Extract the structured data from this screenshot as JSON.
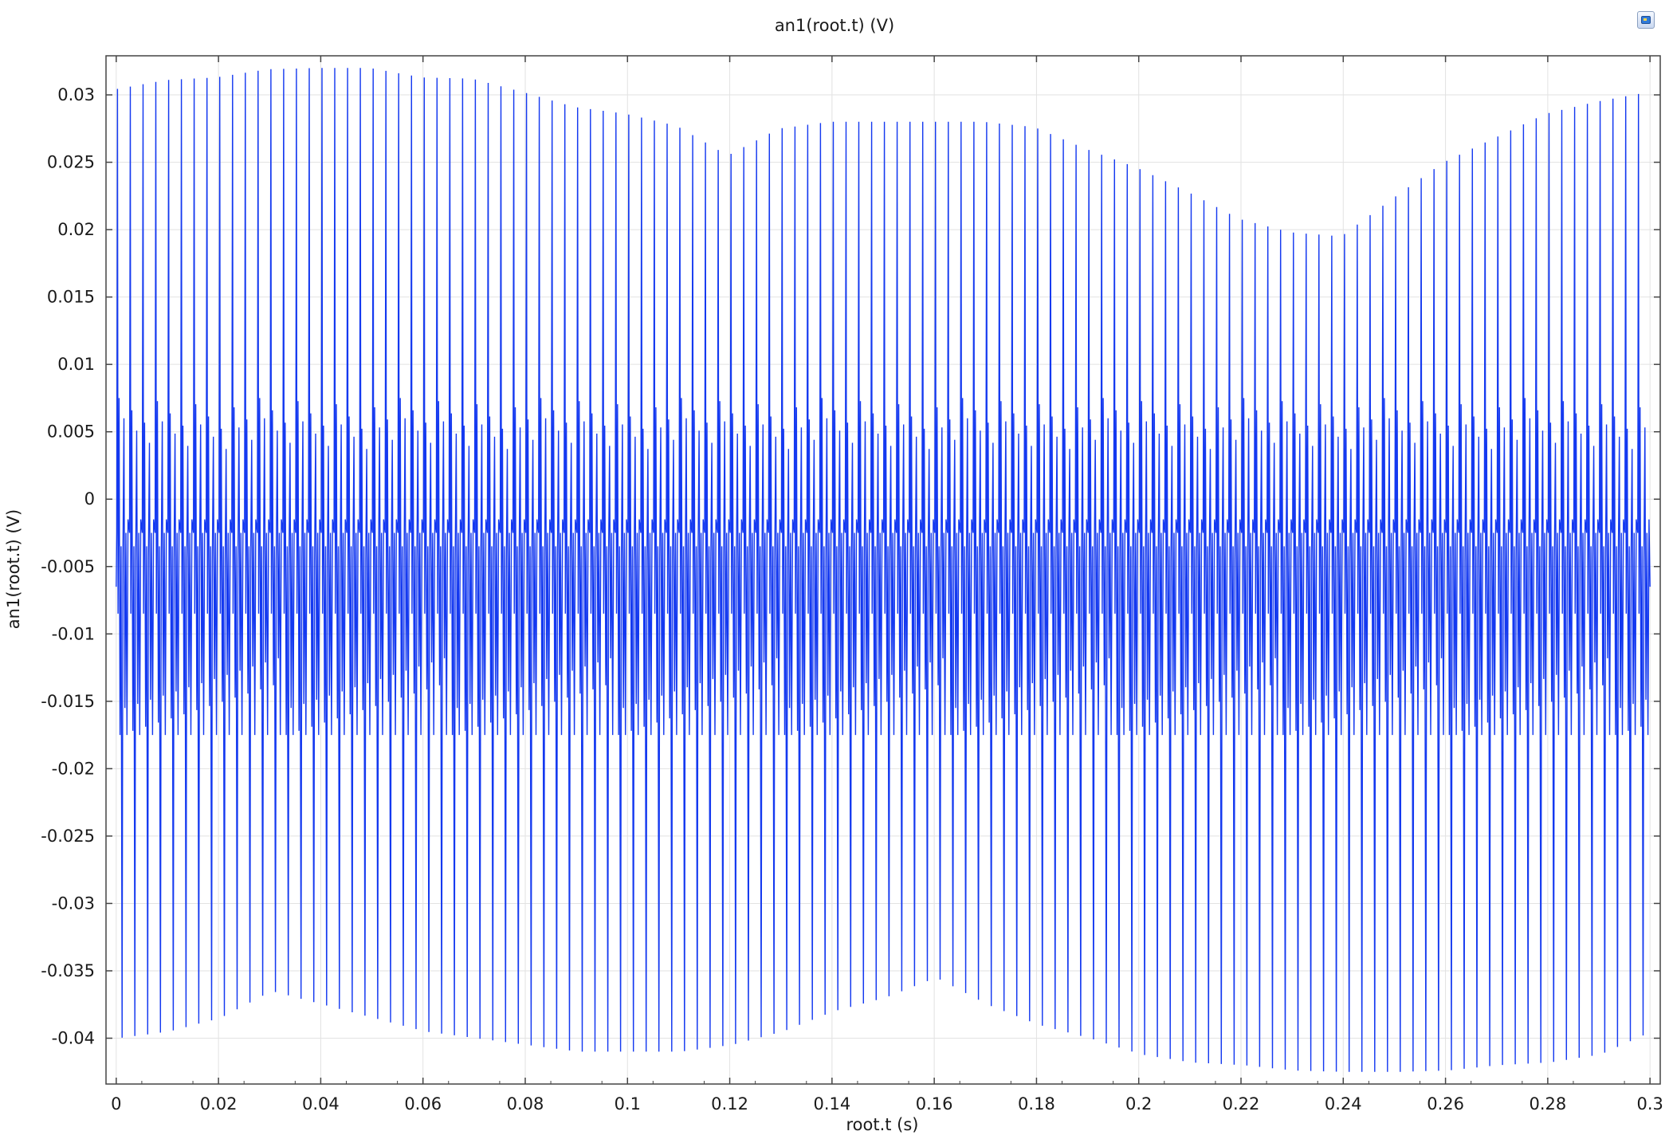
{
  "chart_data": {
    "type": "line",
    "title": "an1(root.t) (V)",
    "xlabel": "root.t (s)",
    "ylabel": "an1(root.t) (V)",
    "xlim": [
      -0.002,
      0.302
    ],
    "ylim": [
      -0.0434,
      0.0329
    ],
    "grid": true,
    "legend": "none",
    "x_ticks": [
      0,
      0.02,
      0.04,
      0.06,
      0.08,
      0.1,
      0.12,
      0.14,
      0.16,
      0.18,
      0.2,
      0.22,
      0.24,
      0.26,
      0.28,
      0.3
    ],
    "x_tick_labels": [
      "0",
      "0.02",
      "0.04",
      "0.06",
      "0.08",
      "0.1",
      "0.12",
      "0.14",
      "0.16",
      "0.18",
      "0.2",
      "0.22",
      "0.24",
      "0.26",
      "0.28",
      "0.3"
    ],
    "y_ticks": [
      0.03,
      0.025,
      0.02,
      0.015,
      0.01,
      0.005,
      0,
      -0.005,
      -0.01,
      -0.015,
      -0.02,
      -0.025,
      -0.03,
      -0.035,
      -0.04
    ],
    "y_tick_labels": [
      "0.03",
      "0.025",
      "0.02",
      "0.015",
      "0.01",
      "0.005",
      "0",
      "-0.005",
      "-0.01",
      "-0.015",
      "-0.02",
      "-0.025",
      "-0.03",
      "-0.035",
      "-0.04"
    ],
    "series": [
      {
        "color": "#1439f0",
        "pulse_period": 0.0025,
        "x_range": [
          0,
          0.3
        ],
        "upper_envelope": {
          "x": [
            0,
            0.01,
            0.02,
            0.03,
            0.04,
            0.05,
            0.06,
            0.07,
            0.08,
            0.09,
            0.1,
            0.11,
            0.12,
            0.13,
            0.14,
            0.15,
            0.16,
            0.17,
            0.18,
            0.19,
            0.2,
            0.21,
            0.22,
            0.23,
            0.24,
            0.25,
            0.26,
            0.27,
            0.28,
            0.29,
            0.3
          ],
          "y": [
            0.0304,
            0.0311,
            0.0313,
            0.0319,
            0.032,
            0.032,
            0.0313,
            0.0312,
            0.0302,
            0.0291,
            0.0286,
            0.0277,
            0.0255,
            0.0275,
            0.028,
            0.028,
            0.028,
            0.028,
            0.0276,
            0.026,
            0.0246,
            0.0228,
            0.0208,
            0.0198,
            0.0195,
            0.0223,
            0.025,
            0.0268,
            0.0286,
            0.0295,
            0.0302
          ]
        },
        "lower_envelope": {
          "x": [
            0,
            0.01,
            0.02,
            0.03,
            0.04,
            0.05,
            0.06,
            0.07,
            0.08,
            0.09,
            0.1,
            0.11,
            0.12,
            0.13,
            0.14,
            0.15,
            0.16,
            0.17,
            0.18,
            0.19,
            0.2,
            0.21,
            0.22,
            0.23,
            0.24,
            0.25,
            0.26,
            0.27,
            0.28,
            0.29,
            0.3
          ],
          "y": [
            -0.04,
            -0.0395,
            -0.0385,
            -0.0365,
            -0.0375,
            -0.0385,
            -0.0395,
            -0.04,
            -0.0405,
            -0.041,
            -0.041,
            -0.041,
            -0.0405,
            -0.0395,
            -0.038,
            -0.037,
            -0.0355,
            -0.0375,
            -0.039,
            -0.04,
            -0.0412,
            -0.0418,
            -0.042,
            -0.0424,
            -0.0425,
            -0.0425,
            -0.0424,
            -0.042,
            -0.0418,
            -0.0412,
            -0.0395
          ]
        },
        "baseline": -0.0065,
        "inner_band": [
          -0.0175,
          0.0075
        ]
      }
    ]
  }
}
